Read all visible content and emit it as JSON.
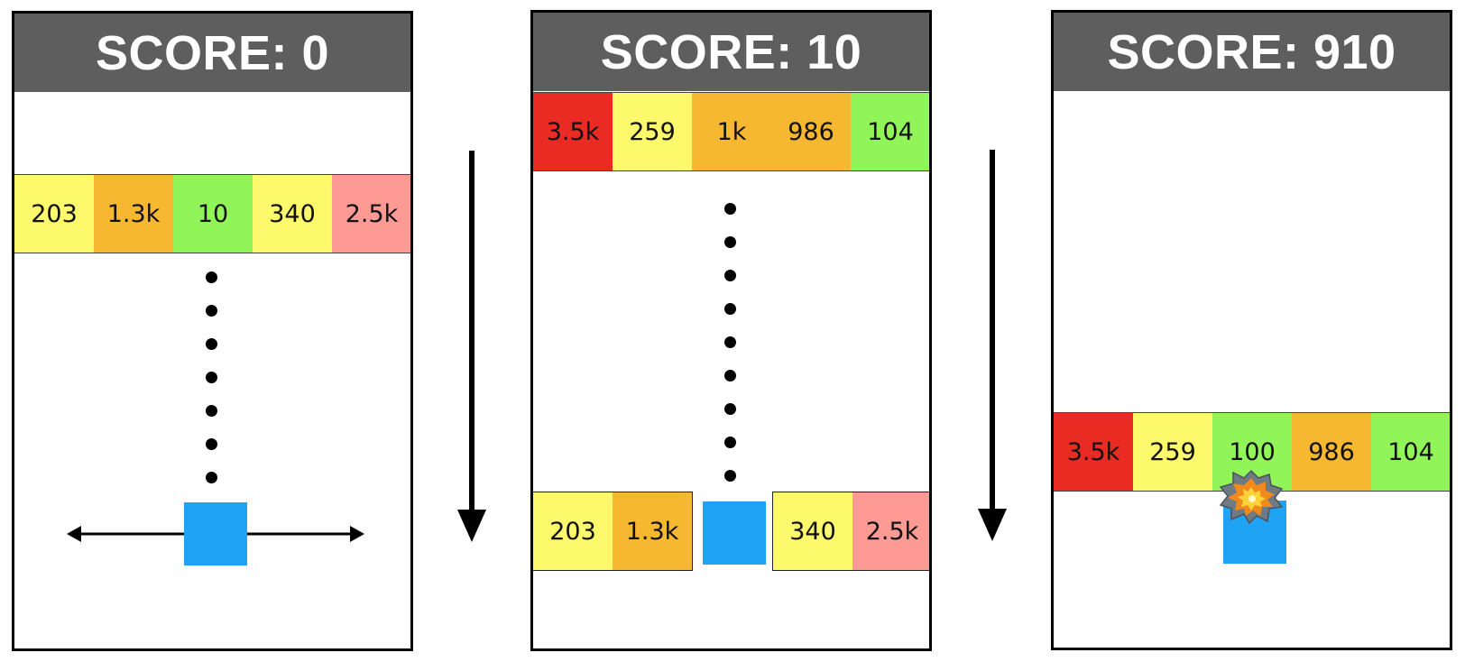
{
  "colors": {
    "red": "#ea2b24",
    "orange": "#f6b731",
    "yellow": "#fdf96c",
    "green": "#91f55a",
    "pink": "#fd9a94",
    "player": "#1fa3f5",
    "header": "#5e5e5e"
  },
  "panels": [
    {
      "score_label": "SCORE: 0",
      "rows": [
        {
          "cells": [
            {
              "label": "203",
              "color": "#fdf96c"
            },
            {
              "label": "1.3k",
              "color": "#f6b731"
            },
            {
              "label": "10",
              "color": "#91f55a"
            },
            {
              "label": "340",
              "color": "#fdf96c"
            },
            {
              "label": "2.5k",
              "color": "#fd9a94"
            }
          ]
        }
      ]
    },
    {
      "score_label": "SCORE: 10",
      "rows": [
        {
          "cells": [
            {
              "label": "3.5k",
              "color": "#ea2b24"
            },
            {
              "label": "259",
              "color": "#fdf96c"
            },
            {
              "label": "1k",
              "color": "#f6b731"
            },
            {
              "label": "986",
              "color": "#f6b731"
            },
            {
              "label": "104",
              "color": "#91f55a"
            }
          ]
        },
        {
          "cells": [
            {
              "label": "203",
              "color": "#fdf96c"
            },
            {
              "label": "1.3k",
              "color": "#f6b731"
            }
          ]
        },
        {
          "cells": [
            {
              "label": "340",
              "color": "#fdf96c"
            },
            {
              "label": "2.5k",
              "color": "#fd9a94"
            }
          ]
        }
      ]
    },
    {
      "score_label": "SCORE: 910",
      "rows": [
        {
          "cells": [
            {
              "label": "3.5k",
              "color": "#ea2b24"
            },
            {
              "label": "259",
              "color": "#fdf96c"
            },
            {
              "label": "100",
              "color": "#91f55a"
            },
            {
              "label": "986",
              "color": "#f6b731"
            },
            {
              "label": "104",
              "color": "#91f55a"
            }
          ]
        }
      ]
    }
  ],
  "icons": {
    "explosion": "explosion-icon",
    "move_arrows": "left-right-arrow-icon",
    "transition_arrow": "down-arrow-icon"
  }
}
